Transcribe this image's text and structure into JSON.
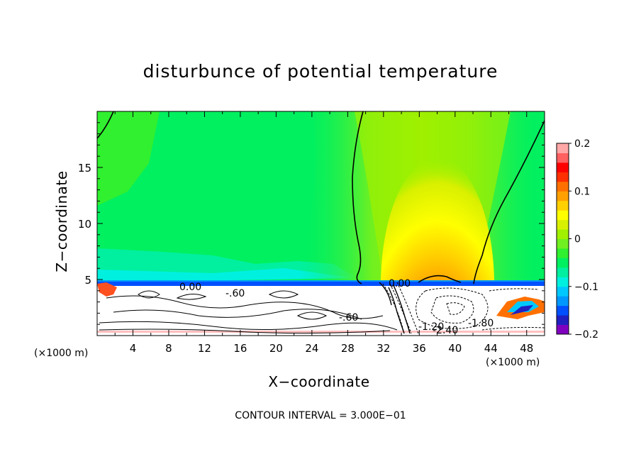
{
  "chart_data": {
    "type": "contour",
    "title": "disturbunce of potential temperature",
    "xlabel": "X−coordinate",
    "ylabel": "Z−coordinate",
    "x_units": "(×1000 m)",
    "x_units_right": "(×1000 m)",
    "xlim": [
      0,
      50
    ],
    "ylim": [
      0,
      20
    ],
    "x_ticks": [
      4,
      8,
      12,
      16,
      20,
      24,
      28,
      32,
      36,
      40,
      44,
      48
    ],
    "y_ticks": [
      5,
      10,
      15
    ],
    "contour_interval_text": "CONTOUR INTERVAL = 3.000E−01",
    "contour_labels": [
      "0.00",
      "0.00",
      "-.60",
      "-2.40",
      "-1.80",
      "-.60",
      "-1.20"
    ],
    "colorbar": {
      "min": -0.2,
      "max": 0.2,
      "tick_labels": [
        "0.2",
        "0.1",
        "0",
        "−0.1",
        "−0.2"
      ],
      "tick_values": [
        0.2,
        0.1,
        0,
        -0.1,
        -0.2
      ],
      "colors": [
        "#8000c0",
        "#2020c0",
        "#0050ff",
        "#0098ff",
        "#00c8ff",
        "#00f0e0",
        "#00f0a0",
        "#00f060",
        "#30f030",
        "#70f020",
        "#a0f000",
        "#d8f000",
        "#ffff00",
        "#ffd000",
        "#ffa000",
        "#ff7000",
        "#ff3000",
        "#ff0000",
        "#ff6060",
        "#ffa8a8"
      ]
    }
  }
}
